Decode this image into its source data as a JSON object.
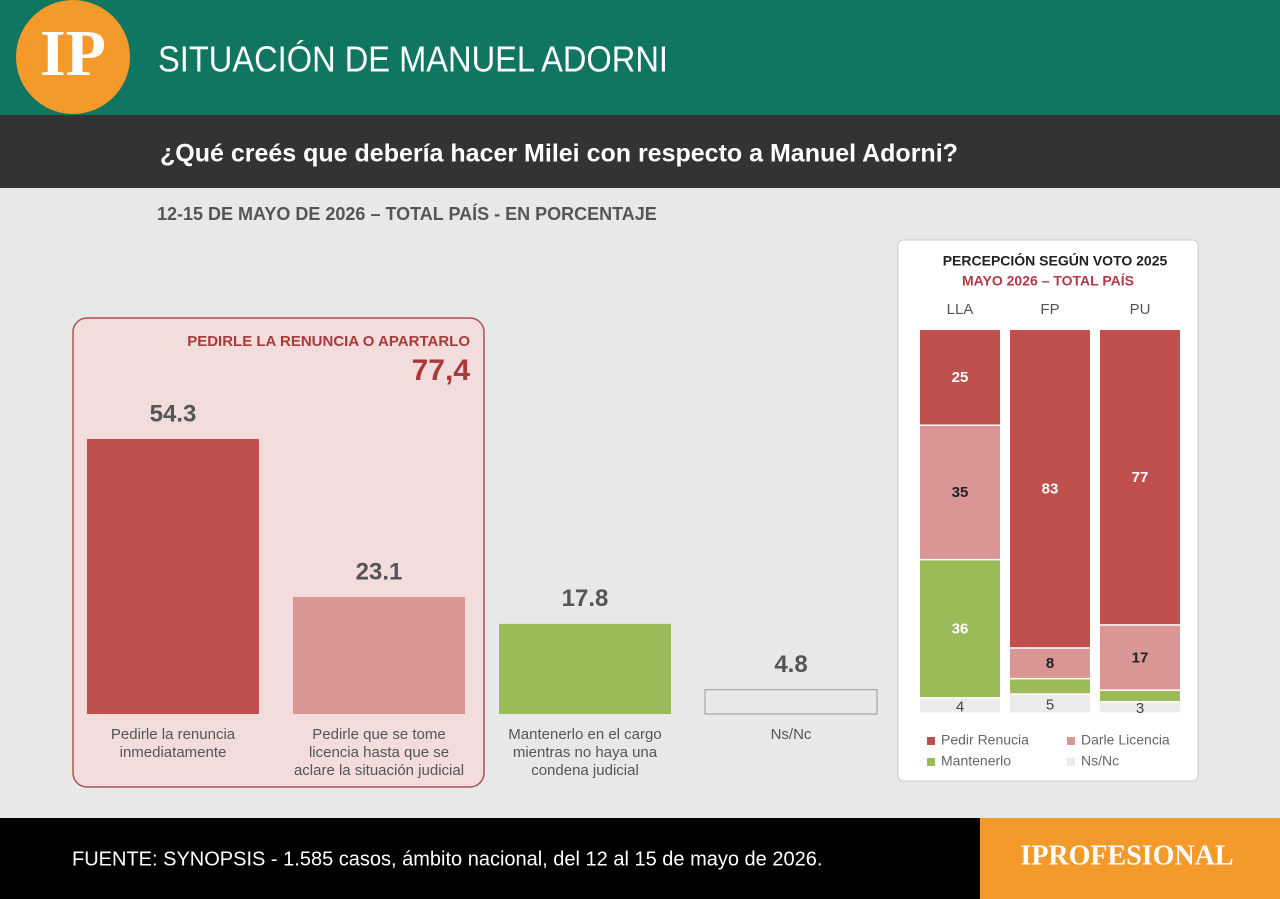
{
  "header": {
    "logo": "IP",
    "title": "SITUACIÓN DE MANUEL ADORNI",
    "question": "¿Qué creés que debería hacer Milei con respecto a Manuel Adorni?",
    "subtitle": "12-15 DE MAYO DE 2026 – TOTAL PAÍS - EN PORCENTAJE"
  },
  "chart_data": [
    {
      "type": "bar",
      "categories": [
        [
          "Pedirle la renuncia",
          "inmediatamente"
        ],
        [
          "Pedirle que se tome",
          "licencia hasta que se",
          "aclare la situación judicial"
        ],
        [
          "Mantenerlo en el cargo",
          "mientras no haya una",
          "condena judicial"
        ],
        [
          "Ns/Nc"
        ]
      ],
      "values": [
        54.3,
        23.1,
        17.8,
        4.8
      ],
      "colors": [
        "#c0504d",
        "#d99694",
        "#9bbb59",
        "#e8e8e8"
      ],
      "group": {
        "label": "PEDIRLE LA RENUNCIA O APARTARLO",
        "value": 77.4,
        "value_label": "77,4"
      }
    },
    {
      "type": "stacked_bar",
      "title": "PERCEPCIÓN SEGÚN VOTO 2025",
      "subtitle": "MAYO 2026 – TOTAL PAÍS",
      "categories": [
        "LLA",
        "FP",
        "PU"
      ],
      "series": [
        {
          "name": "Pedir Renucia",
          "color": "#c0504d",
          "values": [
            25,
            83,
            77
          ]
        },
        {
          "name": "Darle Licencia",
          "color": "#d99694",
          "values": [
            35,
            8,
            17
          ]
        },
        {
          "name": "Mantenerlo",
          "color": "#9bbb59",
          "values": [
            36,
            4,
            3
          ],
          "value_labels": [
            "36",
            null,
            null
          ]
        },
        {
          "name": "Ns/Nc",
          "color": "#ebebeb",
          "values": [
            4,
            5,
            3
          ]
        }
      ],
      "legend": "bottom"
    }
  ],
  "footer": {
    "source": "FUENTE: SYNOPSIS - 1.585 casos, ámbito nacional, del 12 al 15 de mayo de 2026.",
    "brand": "IPROFESIONAL"
  }
}
